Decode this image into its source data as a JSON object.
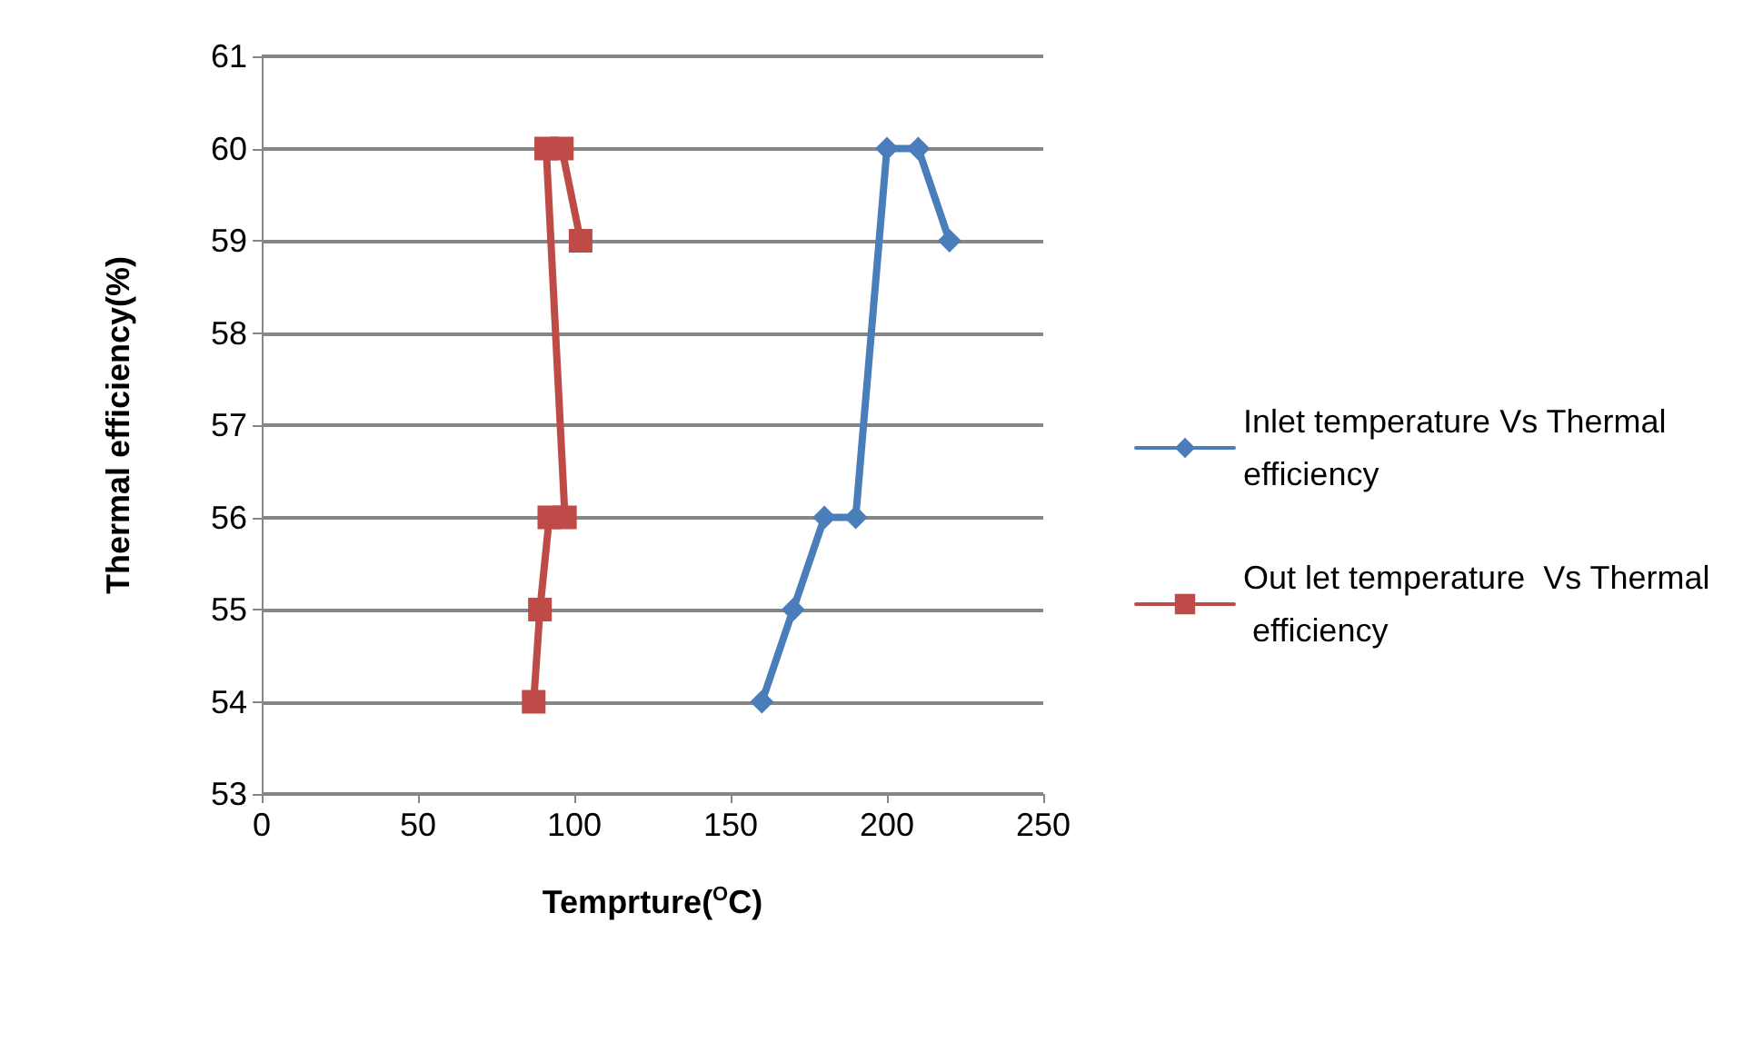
{
  "chart_data": {
    "type": "line",
    "xlabel": "Temprture($^{O}$C)",
    "ylabel": "Thermal efficiency(%)",
    "xlim": [
      0,
      250
    ],
    "xticks": [
      0,
      50,
      100,
      150,
      200,
      250
    ],
    "ylim": [
      53,
      61
    ],
    "yticks": [
      53,
      54,
      55,
      56,
      57,
      58,
      59,
      60,
      61
    ],
    "grid": "y",
    "legend": "right",
    "line_style": "solid",
    "series": [
      {
        "name": "Inlet temperature Vs Thermal efficiency",
        "color": "#4a7ebb",
        "marker": "diamond",
        "x": [
          160,
          170,
          180,
          190,
          200,
          210,
          220
        ],
        "values": [
          54,
          55,
          56,
          56,
          60,
          60,
          59
        ]
      },
      {
        "name": "Out let temperature  Vs Thermal efficiency",
        "color": "#be4b48",
        "marker": "square",
        "x": [
          87,
          89,
          92,
          97,
          91,
          96,
          102
        ],
        "values": [
          54,
          55,
          56,
          56,
          60,
          60,
          59
        ]
      }
    ]
  }
}
